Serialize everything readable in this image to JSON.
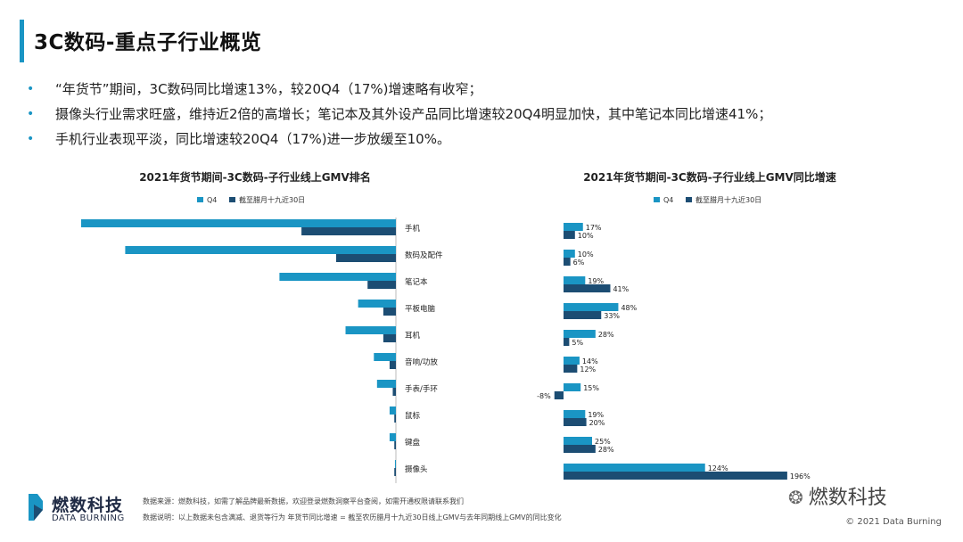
{
  "page": {
    "title": "3C数码-重点子行业概览",
    "bullets": [
      "“年货节”期间，3C数码同比增速13%，较20Q4（17%)增速略有收窄；",
      "摄像头行业需求旺盛，维持近2倍的高增长；笔记本及其外设产品同比增速较20Q4明显加快，其中笔记本同比增速41%；",
      "手机行业表现平淡，同比增速较20Q4（17%)进一步放缓至10%。"
    ],
    "bullet_glyph": "•"
  },
  "colors": {
    "q4": "#1a95c4",
    "period": "#1c4d73",
    "accent": "#1a95c4",
    "brand": "#1f2a44"
  },
  "chart_data": [
    {
      "type": "bar",
      "orientation": "horizontal",
      "title": "2021年货节期间-3C数码-子行业线上GMV排名",
      "legend": [
        "Q4",
        "截至腊月十九近30日"
      ],
      "legend_position": "top-center",
      "categories": [
        "手机",
        "数码及配件",
        "笔记本",
        "平板电脑",
        "耳机",
        "音响/功放",
        "手表/手环",
        "鼠标",
        "键盘",
        "摄像头"
      ],
      "series": [
        {
          "name": "Q4",
          "values": [
            100,
            86,
            37,
            12,
            16,
            7,
            6,
            2,
            2,
            0.3
          ]
        },
        {
          "name": "截至腊月十九近30日",
          "values": [
            30,
            19,
            9,
            4,
            4,
            2,
            1,
            0.5,
            0.5,
            0.5
          ]
        }
      ],
      "note": "relative scale, no axis labels shown"
    },
    {
      "type": "bar",
      "orientation": "horizontal",
      "title": "2021年货节期间-3C数码-子行业线上GMV同比增速",
      "legend": [
        "Q4",
        "截至腊月十九近30日"
      ],
      "legend_position": "top-center",
      "categories": [
        "手机",
        "数码及配件",
        "笔记本",
        "平板电脑",
        "耳机",
        "音响/功放",
        "手表/手环",
        "鼠标",
        "键盘",
        "摄像头"
      ],
      "series": [
        {
          "name": "Q4",
          "values": [
            17,
            10,
            19,
            48,
            28,
            14,
            15,
            19,
            25,
            124
          ]
        },
        {
          "name": "截至腊月十九近30日",
          "values": [
            10,
            6,
            41,
            33,
            5,
            12,
            -8,
            20,
            28,
            196
          ]
        }
      ],
      "value_labels": {
        "Q4": [
          "17%",
          "10%",
          "19%",
          "48%",
          "28%",
          "14%",
          "15%",
          "19%",
          "25%",
          "124%"
        ],
        "截至腊月十九近30日": [
          "10%",
          "6%",
          "41%",
          "33%",
          "5%",
          "12%",
          "-8%",
          "20%",
          "28%",
          "196%"
        ]
      },
      "unit": "%"
    }
  ],
  "footer": {
    "brand_cn": "燃数科技",
    "brand_en": "DATA BURNING",
    "source": "数据来源：燃数科技，如需了解品牌最新数据，欢迎登录燃数洞察平台查阅，如需开通权限请联系我们",
    "note": "数据说明：以上数据未包含满减、退货等行为  年货节同比增速 = 截至农历腊月十九近30日线上GMV与去年同期线上GMV的同比变化",
    "watermark": "燃数科技",
    "copyright": "© 2021 Data Burning"
  }
}
